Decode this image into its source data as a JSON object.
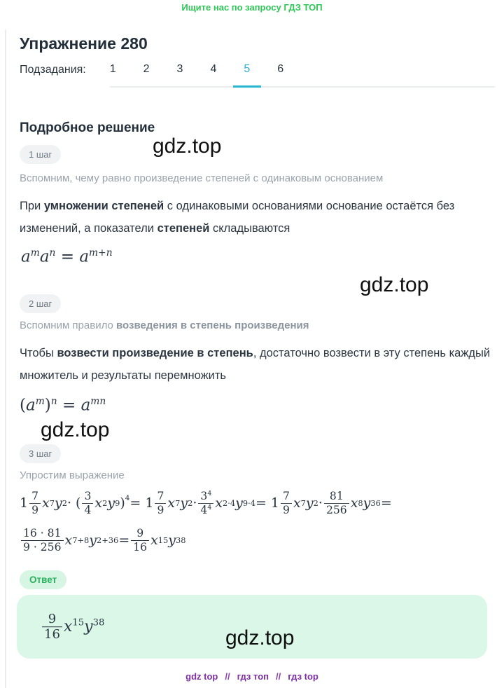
{
  "promo": {
    "text": "Ищите нас по запросу ГДЗ ТОП"
  },
  "header": {
    "title": "Упражнение 280"
  },
  "subtasks": {
    "label": "Подзадания:",
    "tabs": [
      "1",
      "2",
      "3",
      "4",
      "5",
      "6"
    ],
    "active_tab": "5",
    "active_color": "#2fadd1"
  },
  "solution": {
    "heading": "Подробное решение",
    "steps": [
      {
        "badge": "1 шаг",
        "note_html": "Вспомним, чему равно произведение степеней с одинаковым основанием",
        "text_html": "При <b>умножении степеней</b> с одинаковыми основаниями основание остаётся без изменений, а показатели <b>степеней</b> складываются",
        "formula_html": "<i>a</i><sup><i>m</i></sup><i>a</i><sup><i>n</i></sup> = <i>a</i><sup><i>m</i>+<i>n</i></sup>"
      },
      {
        "badge": "2 шаг",
        "note_html": "Вспомним правило <b>возведения в степень произведения</b>",
        "text_html": "Чтобы <b>возвести произведение в степень</b>, достаточно возвести в эту степень каждый множитель и результаты перемножить",
        "formula_html": "(<i>a</i><sup><i>m</i></sup>)<sup><i>n</i></sup> = <i>a</i><sup><i>mn</i></sup>"
      },
      {
        "badge": "3 шаг",
        "note_html": "Упростим выражение",
        "formula_line1_html": "1<span class=\"frac\"><span>7</span><span>9</span></span><i>x</i><sup>7</sup><i>y</i><sup>2</sup> · (<span class=\"frac\"><span>3</span><span>4</span></span><i>x</i><sup>2</sup><i>y</i><sup>9</sup>)<sup class=\"hi\">4</sup> = 1<span class=\"frac\"><span>7</span><span>9</span></span><i>x</i><sup>7</sup><i>y</i><sup>2</sup> · <span class=\"frac\"><span>3<sup>4</sup></span><span>4<sup>4</sup></span></span><i>x</i><sup>2·4</sup><i>y</i><sup>9·4</sup> = 1<span class=\"frac\"><span>7</span><span>9</span></span><i>x</i><sup>7</sup><i>y</i><sup>2</sup> · <span class=\"frac\"><span>81</span><span>256</span></span><i>x</i><sup>8</sup><i>y</i><sup>36</sup> =",
        "formula_line2_html": "<span class=\"frac\"><span>16 · 81</span><span>9 · 256</span></span><i>x</i><sup>7+8</sup><i>y</i><sup>2+36</sup> = <span class=\"frac\"><span>9</span><span>16</span></span><i>x</i><sup>15</sup><i>y</i><sup>38</sup>"
      }
    ]
  },
  "answer": {
    "badge": "Ответ",
    "badge_color": "#2bb15f",
    "box_color": "#daf7e8",
    "formula_html": "<span class=\"frac\"><span>9</span><span>16</span></span><i>x</i><sup>15</sup><i>y</i><sup>38</sup>"
  },
  "watermarks": [
    "gdz.top",
    "gdz.top",
    "gdz.top",
    "gdz.top"
  ],
  "footer": {
    "links": [
      "gdz top",
      "гдз топ",
      "гдз top"
    ],
    "separator": "//"
  }
}
